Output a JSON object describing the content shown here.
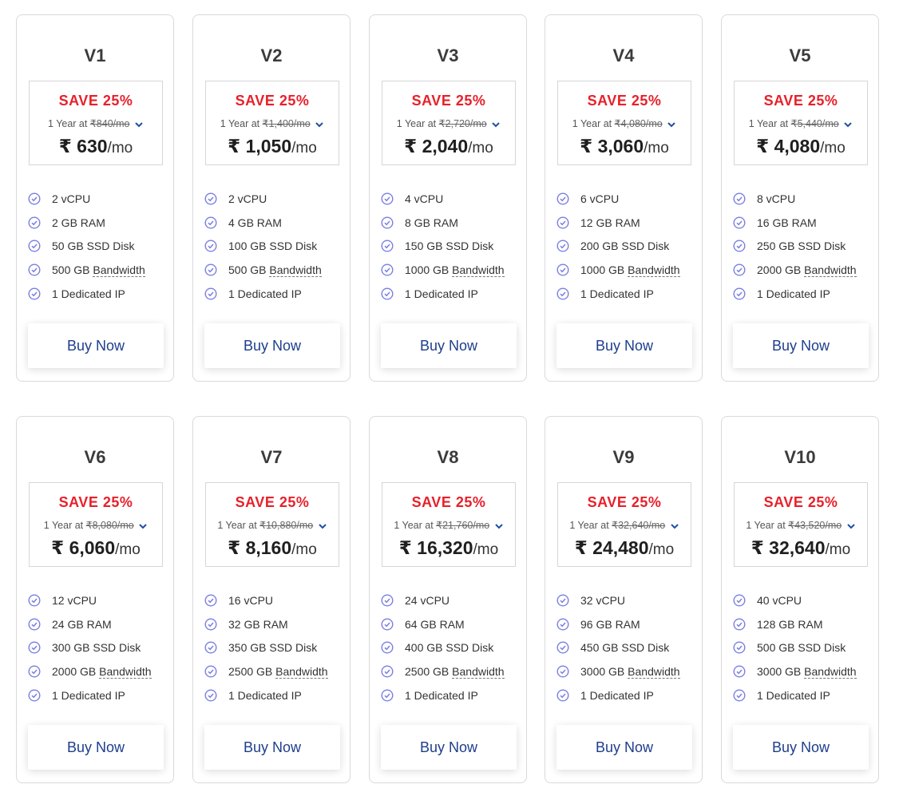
{
  "currency": "₹",
  "per_month": "/mo",
  "term_prefix": "1 Year at",
  "buy_label": "Buy Now",
  "bandwidth_word": "Bandwidth",
  "colors": {
    "save": "#e8202a",
    "button_text": "#1e3e8c",
    "check": "#7b7fe0"
  },
  "plans": [
    {
      "name": "V1",
      "save": "SAVE 25%",
      "old": "840/mo",
      "price": "630",
      "cpu": "2 vCPU",
      "ram": "2 GB RAM",
      "disk": "50 GB SSD Disk",
      "bw": "500 GB",
      "ip": "1 Dedicated IP"
    },
    {
      "name": "V2",
      "save": "SAVE 25%",
      "old": "1,400/mo",
      "price": "1,050",
      "cpu": "2 vCPU",
      "ram": "4 GB RAM",
      "disk": "100 GB SSD Disk",
      "bw": "500 GB",
      "ip": "1 Dedicated IP"
    },
    {
      "name": "V3",
      "save": "SAVE 25%",
      "old": "2,720/mo",
      "price": "2,040",
      "cpu": "4 vCPU",
      "ram": "8 GB RAM",
      "disk": "150 GB SSD Disk",
      "bw": "1000 GB",
      "ip": "1 Dedicated IP"
    },
    {
      "name": "V4",
      "save": "SAVE 25%",
      "old": "4,080/mo",
      "price": "3,060",
      "cpu": "6 vCPU",
      "ram": "12 GB RAM",
      "disk": "200 GB SSD Disk",
      "bw": "1000 GB",
      "ip": "1 Dedicated IP"
    },
    {
      "name": "V5",
      "save": "SAVE 25%",
      "old": "5,440/mo",
      "price": "4,080",
      "cpu": "8 vCPU",
      "ram": "16 GB RAM",
      "disk": "250 GB SSD Disk",
      "bw": "2000 GB",
      "ip": "1 Dedicated IP"
    },
    {
      "name": "V6",
      "save": "SAVE 25%",
      "old": "8,080/mo",
      "price": "6,060",
      "cpu": "12 vCPU",
      "ram": "24 GB RAM",
      "disk": "300 GB SSD Disk",
      "bw": "2000 GB",
      "ip": "1 Dedicated IP"
    },
    {
      "name": "V7",
      "save": "SAVE 25%",
      "old": "10,880/mo",
      "price": "8,160",
      "cpu": "16 vCPU",
      "ram": "32 GB RAM",
      "disk": "350 GB SSD Disk",
      "bw": "2500 GB",
      "ip": "1 Dedicated IP"
    },
    {
      "name": "V8",
      "save": "SAVE 25%",
      "old": "21,760/mo",
      "price": "16,320",
      "cpu": "24 vCPU",
      "ram": "64 GB RAM",
      "disk": "400 GB SSD Disk",
      "bw": "2500 GB",
      "ip": "1 Dedicated IP"
    },
    {
      "name": "V9",
      "save": "SAVE 25%",
      "old": "32,640/mo",
      "price": "24,480",
      "cpu": "32 vCPU",
      "ram": "96 GB RAM",
      "disk": "450 GB SSD Disk",
      "bw": "3000 GB",
      "ip": "1 Dedicated IP"
    },
    {
      "name": "V10",
      "save": "SAVE 25%",
      "old": "43,520/mo",
      "price": "32,640",
      "cpu": "40 vCPU",
      "ram": "128 GB RAM",
      "disk": "500 GB SSD Disk",
      "bw": "3000 GB",
      "ip": "1 Dedicated IP"
    }
  ]
}
